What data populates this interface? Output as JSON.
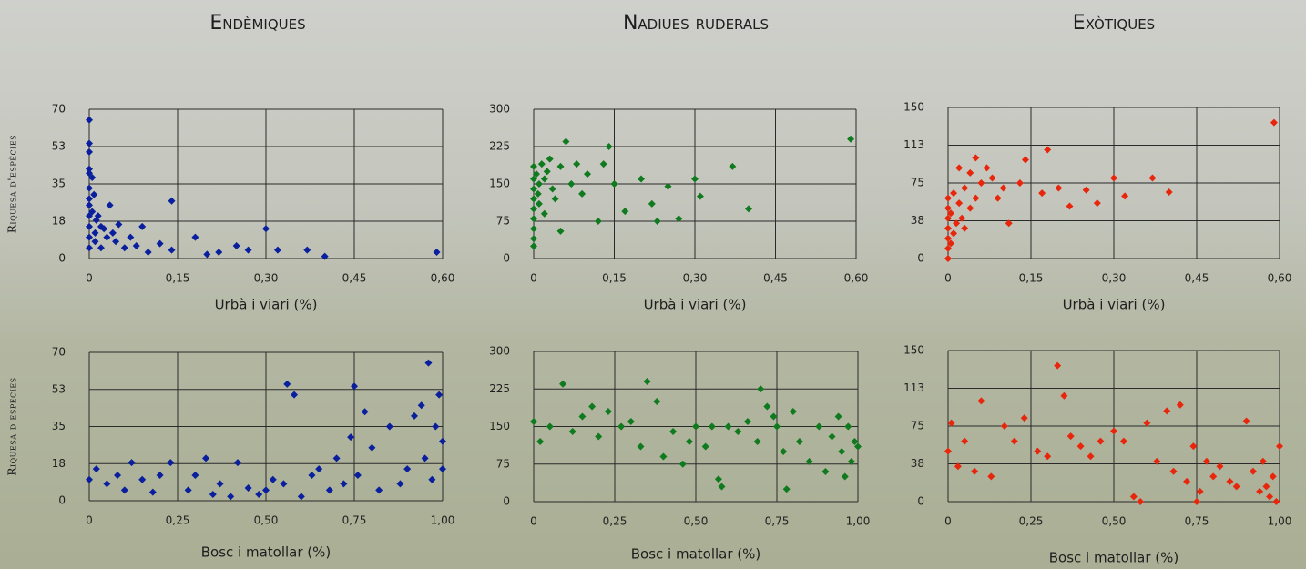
{
  "column_titles": [
    "Endèmiques",
    "Nadiues ruderals",
    "Exòtiques"
  ],
  "chart_data": [
    {
      "type": "scatter",
      "ylabel": "Riquesa d'espècies",
      "xlabel": "Urbà i viari (%)",
      "color": "#0a1f9e",
      "xlim": [
        0,
        0.6
      ],
      "xticks": [
        0,
        {
          "value": 0.15,
          "label": "0,15"
        },
        {
          "value": 0.3,
          "label": "0,30"
        },
        {
          "value": 0.45,
          "label": "0,45"
        },
        {
          "value": 0.6,
          "label": "0,60"
        }
      ],
      "ylim": [
        0,
        70
      ],
      "yticks": [
        0,
        {
          "value": 17.5,
          "label": "18"
        },
        35,
        {
          "value": 52.5,
          "label": "53"
        },
        70
      ],
      "x": [
        0,
        0,
        0,
        0,
        0,
        0,
        0,
        0,
        0,
        0,
        0,
        0,
        0.005,
        0.005,
        0.008,
        0.01,
        0.01,
        0.012,
        0.015,
        0.02,
        0.02,
        0.025,
        0.03,
        0.035,
        0.04,
        0.045,
        0.05,
        0.06,
        0.07,
        0.08,
        0.09,
        0.1,
        0.12,
        0.14,
        0.14,
        0.18,
        0.2,
        0.22,
        0.25,
        0.27,
        0.3,
        0.32,
        0.37,
        0.4,
        0.59
      ],
      "values": [
        65,
        54,
        50,
        42,
        40,
        33,
        28,
        25,
        20,
        15,
        10,
        5,
        38,
        22,
        30,
        12,
        8,
        18,
        20,
        15,
        5,
        14,
        10,
        25,
        12,
        8,
        16,
        5,
        10,
        6,
        15,
        3,
        7,
        27,
        4,
        10,
        2,
        3,
        6,
        4,
        14,
        4,
        4,
        1,
        3
      ]
    },
    {
      "type": "scatter",
      "xlabel": "Urbà i viari (%)",
      "color": "#0f7a1e",
      "xlim": [
        0,
        0.6
      ],
      "xticks": [
        0,
        {
          "value": 0.15,
          "label": "0,15"
        },
        {
          "value": 0.3,
          "label": "0,30"
        },
        {
          "value": 0.45,
          "label": "0,45"
        },
        {
          "value": 0.6,
          "label": "0,60"
        }
      ],
      "ylim": [
        0,
        300
      ],
      "yticks": [
        0,
        75,
        150,
        225,
        300
      ],
      "x": [
        0,
        0,
        0,
        0,
        0,
        0,
        0,
        0,
        0,
        0.005,
        0.008,
        0.01,
        0.01,
        0.015,
        0.02,
        0.02,
        0.025,
        0.03,
        0.035,
        0.04,
        0.05,
        0.05,
        0.06,
        0.07,
        0.08,
        0.09,
        0.1,
        0.12,
        0.13,
        0.14,
        0.15,
        0.17,
        0.2,
        0.22,
        0.23,
        0.25,
        0.27,
        0.3,
        0.31,
        0.37,
        0.4,
        0.59
      ],
      "values": [
        25,
        40,
        60,
        80,
        100,
        120,
        140,
        160,
        185,
        170,
        130,
        150,
        110,
        190,
        90,
        160,
        175,
        200,
        140,
        120,
        185,
        55,
        235,
        150,
        190,
        130,
        170,
        75,
        190,
        225,
        150,
        95,
        160,
        110,
        75,
        145,
        80,
        160,
        125,
        185,
        100,
        240
      ]
    },
    {
      "type": "scatter",
      "xlabel": "Urbà i viari (%)",
      "color": "#e8260c",
      "xlim": [
        0,
        0.6
      ],
      "xticks": [
        0,
        {
          "value": 0.15,
          "label": "0,15"
        },
        {
          "value": 0.3,
          "label": "0,30"
        },
        {
          "value": 0.45,
          "label": "0,45"
        },
        {
          "value": 0.6,
          "label": "0,60"
        }
      ],
      "ylim": [
        0,
        150
      ],
      "yticks": [
        0,
        {
          "value": 37.5,
          "label": "38"
        },
        75,
        {
          "value": 112.5,
          "label": "113"
        },
        150
      ],
      "x": [
        0,
        0,
        0,
        0,
        0,
        0,
        0,
        0.005,
        0.005,
        0.01,
        0.01,
        0.015,
        0.02,
        0.02,
        0.025,
        0.03,
        0.03,
        0.04,
        0.04,
        0.05,
        0.05,
        0.06,
        0.07,
        0.08,
        0.09,
        0.1,
        0.11,
        0.13,
        0.14,
        0.17,
        0.18,
        0.2,
        0.22,
        0.25,
        0.27,
        0.3,
        0.32,
        0.37,
        0.4,
        0.59
      ],
      "values": [
        0,
        10,
        20,
        30,
        40,
        50,
        60,
        15,
        45,
        25,
        65,
        35,
        55,
        90,
        40,
        70,
        30,
        85,
        50,
        100,
        60,
        75,
        90,
        80,
        60,
        70,
        35,
        75,
        98,
        65,
        108,
        70,
        52,
        68,
        55,
        80,
        62,
        80,
        66,
        135
      ]
    },
    {
      "type": "scatter",
      "ylabel": "Riquesa d'espècies",
      "xlabel": "Bosc i matollar (%)",
      "color": "#0a1f9e",
      "xlim": [
        0,
        1
      ],
      "xticks": [
        0,
        {
          "value": 0.25,
          "label": "0,25"
        },
        {
          "value": 0.5,
          "label": "0,50"
        },
        {
          "value": 0.75,
          "label": "0,75"
        },
        {
          "value": 1,
          "label": "1,00"
        }
      ],
      "ylim": [
        0,
        70
      ],
      "yticks": [
        0,
        {
          "value": 17.5,
          "label": "18"
        },
        35,
        {
          "value": 52.5,
          "label": "53"
        },
        70
      ],
      "x": [
        0,
        0.02,
        0.05,
        0.08,
        0.1,
        0.12,
        0.15,
        0.18,
        0.2,
        0.23,
        0.28,
        0.3,
        0.33,
        0.35,
        0.37,
        0.4,
        0.42,
        0.45,
        0.48,
        0.5,
        0.52,
        0.55,
        0.56,
        0.58,
        0.6,
        0.63,
        0.65,
        0.68,
        0.7,
        0.72,
        0.74,
        0.75,
        0.76,
        0.78,
        0.8,
        0.82,
        0.85,
        0.88,
        0.9,
        0.92,
        0.94,
        0.95,
        0.96,
        0.97,
        0.98,
        0.99,
        1,
        1
      ],
      "values": [
        10,
        15,
        8,
        12,
        5,
        18,
        10,
        4,
        12,
        18,
        5,
        12,
        20,
        3,
        8,
        2,
        18,
        6,
        3,
        5,
        10,
        8,
        55,
        50,
        2,
        12,
        15,
        5,
        20,
        8,
        30,
        54,
        12,
        42,
        25,
        5,
        35,
        8,
        15,
        40,
        45,
        20,
        65,
        10,
        35,
        50,
        28,
        15
      ]
    },
    {
      "type": "scatter",
      "xlabel": "Bosc i matollar (%)",
      "color": "#0f7a1e",
      "xlim": [
        0,
        1
      ],
      "xticks": [
        0,
        {
          "value": 0.25,
          "label": "0,25"
        },
        {
          "value": 0.5,
          "label": "0,50"
        },
        {
          "value": 0.75,
          "label": "0,75"
        },
        {
          "value": 1,
          "label": "1,00"
        }
      ],
      "ylim": [
        0,
        300
      ],
      "yticks": [
        0,
        75,
        150,
        225,
        300
      ],
      "x": [
        0,
        0.02,
        0.05,
        0.09,
        0.12,
        0.15,
        0.18,
        0.2,
        0.23,
        0.27,
        0.3,
        0.33,
        0.35,
        0.38,
        0.4,
        0.43,
        0.46,
        0.48,
        0.5,
        0.53,
        0.55,
        0.57,
        0.58,
        0.6,
        0.63,
        0.66,
        0.69,
        0.7,
        0.72,
        0.74,
        0.75,
        0.77,
        0.78,
        0.8,
        0.82,
        0.85,
        0.88,
        0.9,
        0.92,
        0.94,
        0.95,
        0.96,
        0.97,
        0.98,
        0.99,
        1
      ],
      "values": [
        160,
        120,
        150,
        235,
        140,
        170,
        190,
        130,
        180,
        150,
        160,
        110,
        240,
        200,
        90,
        140,
        75,
        120,
        150,
        110,
        150,
        45,
        30,
        150,
        140,
        160,
        120,
        225,
        190,
        170,
        150,
        100,
        25,
        180,
        120,
        80,
        150,
        60,
        130,
        170,
        100,
        50,
        150,
        80,
        120,
        110
      ]
    },
    {
      "type": "scatter",
      "xlabel": "Bosc i matollar (%)",
      "color": "#e8260c",
      "xlim": [
        0,
        1
      ],
      "xticks": [
        0,
        {
          "value": 0.25,
          "label": "0,25"
        },
        {
          "value": 0.5,
          "label": "0,50"
        },
        {
          "value": 0.75,
          "label": "0,75"
        },
        {
          "value": 1,
          "label": "1,00"
        }
      ],
      "ylim": [
        0,
        150
      ],
      "yticks": [
        0,
        {
          "value": 37.5,
          "label": "38"
        },
        75,
        {
          "value": 112.5,
          "label": "113"
        },
        150
      ],
      "x": [
        0,
        0.01,
        0.03,
        0.05,
        0.08,
        0.1,
        0.13,
        0.17,
        0.2,
        0.23,
        0.27,
        0.3,
        0.33,
        0.35,
        0.37,
        0.4,
        0.43,
        0.46,
        0.5,
        0.53,
        0.56,
        0.58,
        0.6,
        0.63,
        0.66,
        0.68,
        0.7,
        0.72,
        0.74,
        0.75,
        0.76,
        0.78,
        0.8,
        0.82,
        0.85,
        0.87,
        0.9,
        0.92,
        0.94,
        0.95,
        0.96,
        0.97,
        0.98,
        0.99,
        1
      ],
      "values": [
        50,
        78,
        35,
        60,
        30,
        100,
        25,
        75,
        60,
        83,
        50,
        45,
        135,
        105,
        65,
        55,
        45,
        60,
        70,
        60,
        5,
        0,
        78,
        40,
        90,
        30,
        96,
        20,
        55,
        0,
        10,
        40,
        25,
        35,
        20,
        15,
        80,
        30,
        10,
        40,
        15,
        5,
        25,
        0,
        55
      ]
    }
  ]
}
